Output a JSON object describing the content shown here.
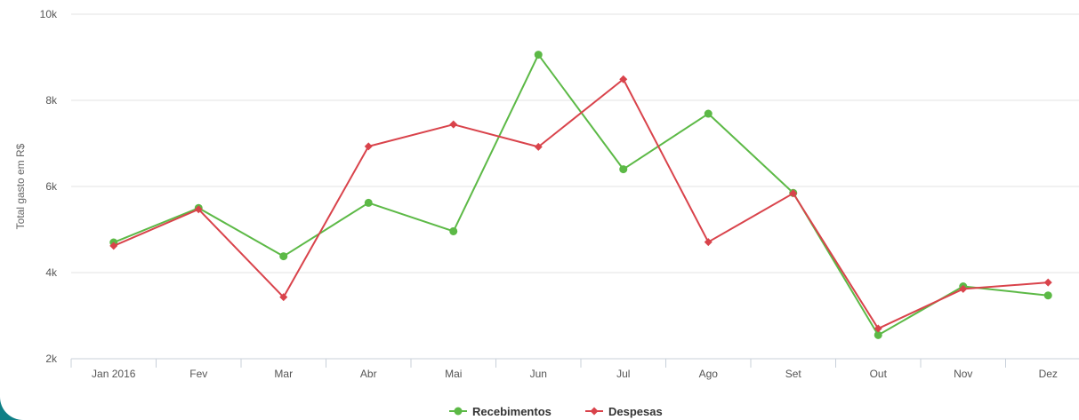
{
  "chart_data": {
    "type": "line",
    "title": "",
    "xlabel": "",
    "ylabel": "Total gasto em R$",
    "categories": [
      "Jan 2016",
      "Fev",
      "Mar",
      "Abr",
      "Mai",
      "Jun",
      "Jul",
      "Ago",
      "Set",
      "Out",
      "Nov",
      "Dez"
    ],
    "ylim": [
      2000,
      10000
    ],
    "yticks": [
      2000,
      4000,
      6000,
      8000,
      10000
    ],
    "ytick_labels": [
      "2k",
      "4k",
      "6k",
      "8k",
      "10k"
    ],
    "grid": true,
    "legend_position": "bottom-center",
    "series": [
      {
        "name": "Recebimentos",
        "color": "#5cb946",
        "marker": "circle",
        "values": [
          4700,
          5500,
          4380,
          5620,
          4960,
          9060,
          6400,
          7690,
          5850,
          2550,
          3680,
          3470
        ]
      },
      {
        "name": "Despesas",
        "color": "#d9434b",
        "marker": "diamond",
        "values": [
          4620,
          5470,
          3430,
          6930,
          7440,
          6920,
          8490,
          4710,
          5840,
          2700,
          3620,
          3770
        ]
      }
    ]
  }
}
